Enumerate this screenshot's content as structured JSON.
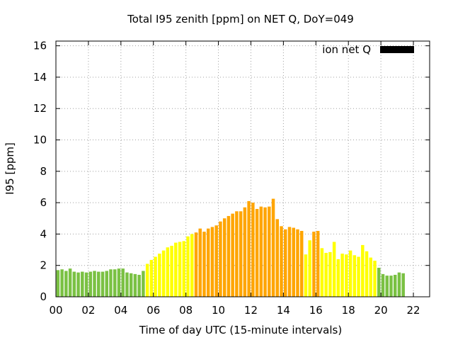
{
  "colors": {
    "low": "#7ac143",
    "mid": "#ffff00",
    "high": "#ffa500",
    "legend": "#000000",
    "grid": "#a0a0a0"
  },
  "chart_data": {
    "type": "bar",
    "title": "Total I95 zenith [ppm] on NET Q, DoY=049",
    "xlabel": "Time of day UTC (15-minute intervals)",
    "ylabel": "I95 [ppm]",
    "xlim": [
      0,
      23
    ],
    "ylim": [
      0,
      16.3
    ],
    "xticks": [
      0,
      2,
      4,
      6,
      8,
      10,
      12,
      14,
      16,
      18,
      20,
      22
    ],
    "xtick_labels": [
      "00",
      "02",
      "04",
      "06",
      "08",
      "10",
      "12",
      "14",
      "16",
      "18",
      "20",
      "22"
    ],
    "yticks": [
      0,
      2,
      4,
      6,
      8,
      10,
      12,
      14,
      16
    ],
    "ytick_labels": [
      "0",
      "2",
      "4",
      "6",
      "8",
      "10",
      "12",
      "14",
      "16"
    ],
    "grid": true,
    "legend": {
      "label": "ion net Q",
      "position": "top-right"
    },
    "bar_step_hours": 0.25,
    "values": [
      1.7,
      1.75,
      1.65,
      1.8,
      1.6,
      1.55,
      1.6,
      1.55,
      1.6,
      1.65,
      1.6,
      1.6,
      1.65,
      1.75,
      1.75,
      1.8,
      1.8,
      1.55,
      1.5,
      1.45,
      1.4,
      1.65,
      2.1,
      2.35,
      2.55,
      2.75,
      2.95,
      3.15,
      3.25,
      3.45,
      3.5,
      3.55,
      3.85,
      4.0,
      4.1,
      4.35,
      4.15,
      4.35,
      4.45,
      4.55,
      4.8,
      5.0,
      5.15,
      5.3,
      5.45,
      5.45,
      5.7,
      6.1,
      6.0,
      5.6,
      5.75,
      5.7,
      5.75,
      6.25,
      4.95,
      4.5,
      4.3,
      4.45,
      4.4,
      4.3,
      4.2,
      2.7,
      3.6,
      4.15,
      4.2,
      3.1,
      2.8,
      2.85,
      3.5,
      2.4,
      2.75,
      2.7,
      2.95,
      2.65,
      2.55,
      3.3,
      2.9,
      2.5,
      2.3,
      1.85,
      1.45,
      1.35,
      1.35,
      1.4,
      1.55,
      1.5
    ],
    "levels": [
      "low",
      "low",
      "low",
      "low",
      "low",
      "low",
      "low",
      "low",
      "low",
      "low",
      "low",
      "low",
      "low",
      "low",
      "low",
      "low",
      "low",
      "low",
      "low",
      "low",
      "low",
      "low",
      "mid",
      "mid",
      "mid",
      "mid",
      "mid",
      "mid",
      "mid",
      "mid",
      "mid",
      "mid",
      "mid",
      "mid",
      "high",
      "high",
      "high",
      "high",
      "high",
      "high",
      "high",
      "high",
      "high",
      "high",
      "high",
      "high",
      "high",
      "high",
      "high",
      "high",
      "high",
      "high",
      "high",
      "high",
      "high",
      "high",
      "high",
      "high",
      "high",
      "high",
      "high",
      "mid",
      "mid",
      "high",
      "high",
      "mid",
      "mid",
      "mid",
      "mid",
      "mid",
      "mid",
      "mid",
      "mid",
      "mid",
      "mid",
      "mid",
      "mid",
      "mid",
      "mid",
      "low",
      "low",
      "low",
      "low",
      "low",
      "low",
      "low"
    ]
  }
}
